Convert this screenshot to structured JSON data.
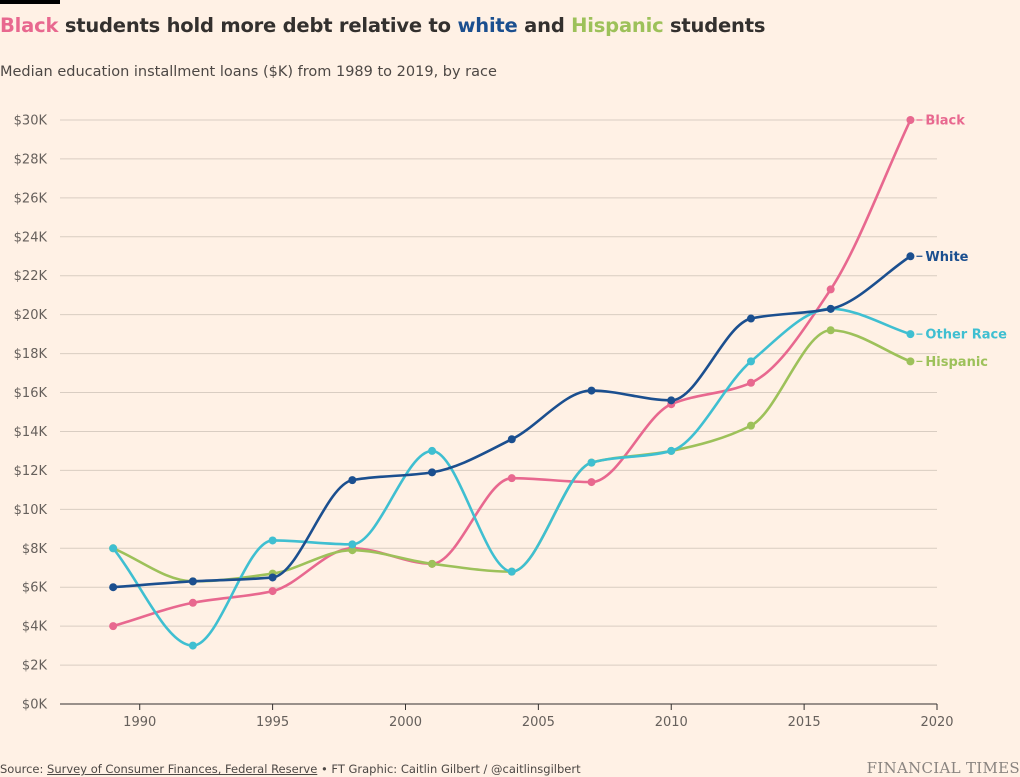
{
  "header": {
    "title_parts": [
      {
        "text": "Black",
        "color": "#e8688f"
      },
      {
        "text": " students hold more debt relative to ",
        "color": "#33302e"
      },
      {
        "text": "white",
        "color": "#1b4f8f"
      },
      {
        "text": " and ",
        "color": "#33302e"
      },
      {
        "text": "Hispanic",
        "color": "#9dc15a"
      },
      {
        "text": " students",
        "color": "#33302e"
      }
    ],
    "subtitle": "Median education installment loans ($K) from 1989 to 2019, by race"
  },
  "footer": {
    "source_prefix": "Source: ",
    "source_link": "Survey of Consumer Finances, Federal Reserve",
    "source_suffix": " • FT Graphic: Caitlin Gilbert / @caitlinsgilbert",
    "brand": "FINANCIAL TIMES"
  },
  "colors": {
    "background": "#fff1e5",
    "grid": "#d9cdc2",
    "axis": "#33302e"
  },
  "chart_data": {
    "type": "line",
    "title": "Black students hold more debt relative to white and Hispanic students",
    "subtitle": "Median education installment loans ($K) from 1989 to 2019, by race",
    "xlabel": "",
    "ylabel": "",
    "xlim": [
      1987,
      2020
    ],
    "ylim": [
      0,
      30
    ],
    "x_ticks": [
      1990,
      1995,
      2000,
      2005,
      2010,
      2015,
      2020
    ],
    "y_ticks": [
      0,
      2,
      4,
      6,
      8,
      10,
      12,
      14,
      16,
      18,
      20,
      22,
      24,
      26,
      28,
      30
    ],
    "y_tick_labels": [
      "$0K",
      "$2K",
      "$4K",
      "$6K",
      "$8K",
      "$10K",
      "$12K",
      "$14K",
      "$16K",
      "$18K",
      "$20K",
      "$22K",
      "$24K",
      "$26K",
      "$28K",
      "$30K"
    ],
    "grid": true,
    "x": [
      1989,
      1992,
      1995,
      1998,
      2001,
      2004,
      2007,
      2010,
      2013,
      2016,
      2019
    ],
    "series": [
      {
        "name": "Black",
        "label": "Black",
        "color": "#e8688f",
        "values": [
          4.0,
          5.2,
          5.8,
          8.0,
          7.2,
          11.6,
          11.4,
          15.4,
          16.5,
          21.3,
          30.0
        ]
      },
      {
        "name": "White",
        "label": "White",
        "color": "#1b4f8f",
        "values": [
          6.0,
          6.3,
          6.5,
          11.5,
          11.9,
          13.6,
          16.1,
          15.6,
          19.8,
          20.3,
          23.0
        ]
      },
      {
        "name": "Other Race",
        "label": "Other Race",
        "color": "#3fbfd1",
        "values": [
          8.0,
          3.0,
          8.4,
          8.2,
          13.0,
          6.8,
          12.4,
          13.0,
          17.6,
          20.3,
          19.0
        ]
      },
      {
        "name": "Hispanic",
        "label": "Hispanic",
        "color": "#9dc15a",
        "values": [
          8.0,
          6.3,
          6.7,
          7.9,
          7.2,
          6.8,
          12.4,
          13.0,
          14.3,
          19.2,
          17.6
        ]
      }
    ]
  }
}
